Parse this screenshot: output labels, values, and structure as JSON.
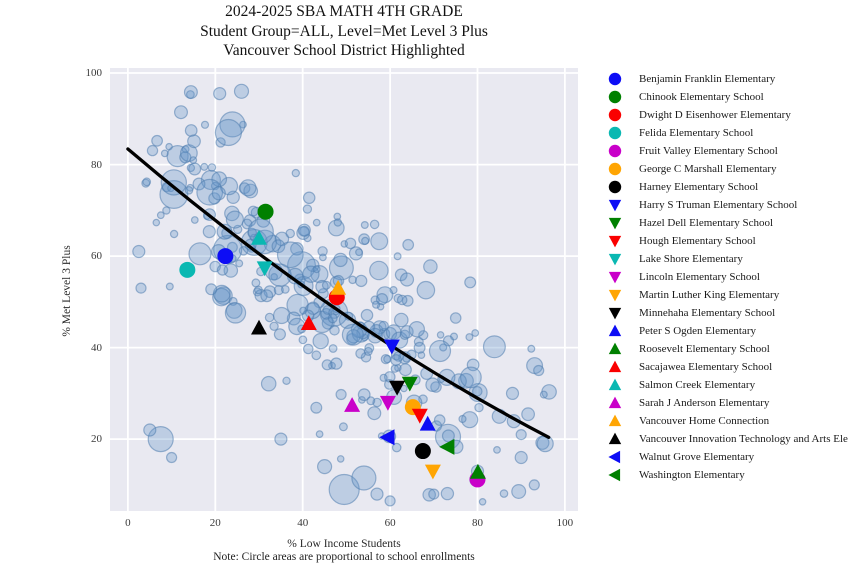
{
  "chart_data": {
    "type": "scatter",
    "title_lines": [
      "2024-2025 SBA MATH 4TH GRADE",
      "Student Group=ALL, Level=Met Level 3 Plus",
      "Vancouver School District Highlighted"
    ],
    "xlabel": "% Low Income Students",
    "ylabel": "% Met Level 3 Plus",
    "note": "Note: Circle areas are proportional to school enrollments",
    "x_ticks": [
      0,
      20,
      40,
      60,
      80,
      100
    ],
    "y_ticks": [
      20,
      40,
      60,
      80,
      100
    ],
    "xlim": [
      -4.1,
      103.0
    ],
    "ylim": [
      4.3,
      101.1
    ],
    "grid": true,
    "plot_bg": "#e9e9f1",
    "grid_color": "#ffffff",
    "trendline": {
      "color": "#000000",
      "width": 3.3,
      "points": [
        [
          0,
          83.4
        ],
        [
          48,
          48.2
        ],
        [
          96.3,
          20.4
        ]
      ]
    },
    "bubble_style": {
      "fill": "rgba(100,150,200,0.33)",
      "stroke": "rgba(80,125,175,0.55)"
    },
    "background_bubbles": {
      "description": "Unlabeled schools statewide; circle areas proportional to enrollment",
      "count": 300,
      "seed": 11,
      "x_mean": 45,
      "x_sd": 22,
      "noise_sd": 12,
      "featured": [
        [
          23,
          87,
          13
        ],
        [
          7.5,
          20,
          12.5
        ],
        [
          49.5,
          9,
          15
        ],
        [
          54,
          11.5,
          12
        ],
        [
          16.5,
          60.5,
          11
        ],
        [
          2.5,
          61,
          6
        ],
        [
          3,
          53,
          5
        ],
        [
          26,
          96,
          7
        ],
        [
          21,
          95.5,
          6
        ],
        [
          45,
          14,
          7
        ],
        [
          57,
          8,
          6
        ],
        [
          70,
          8,
          5
        ],
        [
          80,
          13,
          6
        ],
        [
          90,
          16,
          6
        ],
        [
          93,
          10,
          5
        ],
        [
          95.5,
          19,
          8
        ],
        [
          85,
          25,
          7
        ],
        [
          90,
          21,
          5
        ],
        [
          10,
          16,
          5
        ],
        [
          5,
          22,
          6
        ],
        [
          60,
          6.5,
          5
        ],
        [
          35,
          20,
          6
        ],
        [
          88,
          30,
          6
        ],
        [
          94,
          35,
          5
        ]
      ]
    },
    "schools": [
      {
        "name": "Benjamin Franklin Elementary",
        "marker": "circle",
        "color": "#0d0df5",
        "x": 22.3,
        "y": 60.0
      },
      {
        "name": "Chinook Elementary School",
        "marker": "circle",
        "color": "#008000",
        "x": 31.5,
        "y": 69.7
      },
      {
        "name": "Dwight D Eisenhower Elementary",
        "marker": "circle",
        "color": "#fa0000",
        "x": 47.8,
        "y": 51.0
      },
      {
        "name": "Felida Elementary School",
        "marker": "circle",
        "color": "#0ab8b2",
        "x": 13.6,
        "y": 57.0
      },
      {
        "name": "Fruit Valley Elementary School",
        "marker": "circle",
        "color": "#c900c9",
        "x": 80.0,
        "y": 11.2
      },
      {
        "name": "George C Marshall Elementary",
        "marker": "circle",
        "color": "#ffa502",
        "x": 65.2,
        "y": 27.0
      },
      {
        "name": "Harney Elementary School",
        "marker": "circle",
        "color": "#000000",
        "x": 67.5,
        "y": 17.4
      },
      {
        "name": "Harry S Truman Elementary School",
        "marker": "triangle-down",
        "color": "#0d0df5",
        "x": 60.4,
        "y": 40.3
      },
      {
        "name": "Hazel Dell Elementary School",
        "marker": "triangle-down",
        "color": "#008000",
        "x": 64.5,
        "y": 32.2
      },
      {
        "name": "Hough Elementary School",
        "marker": "triangle-down",
        "color": "#fa0000",
        "x": 66.8,
        "y": 25.2
      },
      {
        "name": "Lake Shore Elementary",
        "marker": "triangle-down",
        "color": "#0ab8b2",
        "x": 31.3,
        "y": 57.4
      },
      {
        "name": "Lincoln Elementary School",
        "marker": "triangle-down",
        "color": "#c900c9",
        "x": 59.5,
        "y": 28.0
      },
      {
        "name": "Martin Luther King Elementary",
        "marker": "triangle-down",
        "color": "#ffa502",
        "x": 69.8,
        "y": 13.0
      },
      {
        "name": "Minnehaha Elementary School",
        "marker": "triangle-down",
        "color": "#000000",
        "x": 61.6,
        "y": 31.3
      },
      {
        "name": "Peter S Ogden Elementary",
        "marker": "triangle-up",
        "color": "#0d0df5",
        "x": 68.6,
        "y": 23.3
      },
      {
        "name": "Roosevelt Elementary School",
        "marker": "triangle-up",
        "color": "#008000",
        "x": 80.1,
        "y": 12.8
      },
      {
        "name": "Sacajawea Elementary School",
        "marker": "triangle-up",
        "color": "#fa0000",
        "x": 41.4,
        "y": 45.3
      },
      {
        "name": "Salmon Creek Elementary",
        "marker": "triangle-up",
        "color": "#0ab8b2",
        "x": 30.0,
        "y": 63.9
      },
      {
        "name": "Sarah J Anderson Elementary",
        "marker": "triangle-up",
        "color": "#c900c9",
        "x": 51.3,
        "y": 27.4
      },
      {
        "name": "Vancouver Home Connection",
        "marker": "triangle-up",
        "color": "#ffa502",
        "x": 48.1,
        "y": 53.0
      },
      {
        "name": "Vancouver Innovation Technology and Arts Ele",
        "marker": "triangle-up",
        "color": "#000000",
        "x": 30.0,
        "y": 44.3
      },
      {
        "name": "Walnut Grove Elementary",
        "marker": "triangle-left",
        "color": "#0d0df5",
        "x": 59.5,
        "y": 20.4
      },
      {
        "name": "Washington Elementary",
        "marker": "triangle-left",
        "color": "#008000",
        "x": 73.2,
        "y": 18.3
      }
    ],
    "legend": {
      "position": "right"
    }
  }
}
